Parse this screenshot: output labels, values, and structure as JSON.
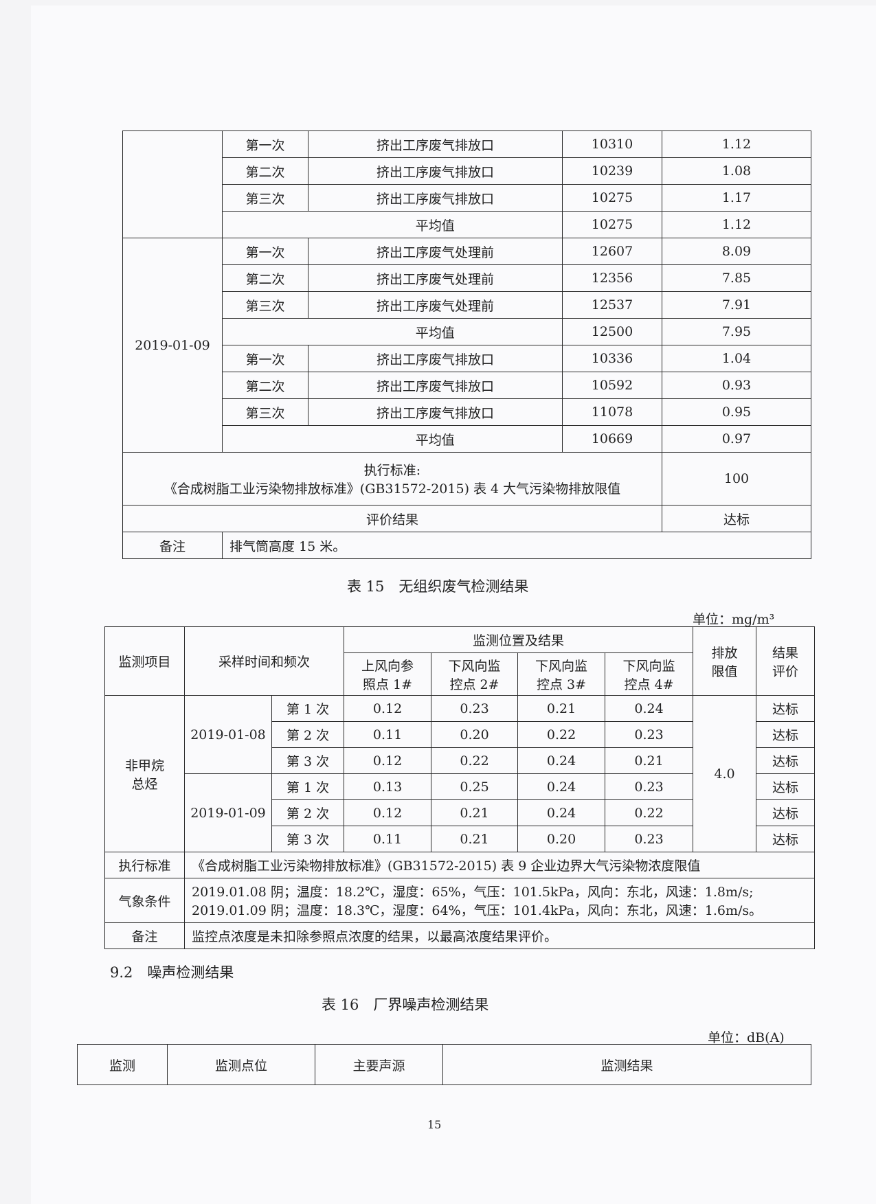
{
  "table14": {
    "blocks": [
      {
        "date": "",
        "rows": [
          {
            "freq": "第一次",
            "location": "挤出工序废气排放口",
            "flow": "10310",
            "conc": "1.12"
          },
          {
            "freq": "第二次",
            "location": "挤出工序废气排放口",
            "flow": "10239",
            "conc": "1.08"
          },
          {
            "freq": "第三次",
            "location": "挤出工序废气排放口",
            "flow": "10275",
            "conc": "1.17"
          }
        ],
        "avg": {
          "label": "平均值",
          "flow": "10275",
          "conc": "1.12"
        }
      },
      {
        "date": "2019-01-09",
        "rows": [
          {
            "freq": "第一次",
            "location": "挤出工序废气处理前",
            "flow": "12607",
            "conc": "8.09"
          },
          {
            "freq": "第二次",
            "location": "挤出工序废气处理前",
            "flow": "12356",
            "conc": "7.85"
          },
          {
            "freq": "第三次",
            "location": "挤出工序废气处理前",
            "flow": "12537",
            "conc": "7.91"
          }
        ],
        "avg": {
          "label": "平均值",
          "flow": "12500",
          "conc": "7.95"
        }
      },
      {
        "date": "",
        "rows": [
          {
            "freq": "第一次",
            "location": "挤出工序废气排放口",
            "flow": "10336",
            "conc": "1.04"
          },
          {
            "freq": "第二次",
            "location": "挤出工序废气排放口",
            "flow": "10592",
            "conc": "0.93"
          },
          {
            "freq": "第三次",
            "location": "挤出工序废气排放口",
            "flow": "11078",
            "conc": "0.95"
          }
        ],
        "avg": {
          "label": "平均值",
          "flow": "10669",
          "conc": "0.97"
        }
      }
    ],
    "standard_label": "执行标准:",
    "standard_text": "《合成树脂工业污染物排放标准》(GB31572-2015) 表 4 大气污染物排放限值",
    "standard_value": "100",
    "eval_label": "评价结果",
    "eval_value": "达标",
    "remark_label": "备注",
    "remark_text": "排气筒高度 15 米。"
  },
  "table15": {
    "caption": "表 15　无组织废气检测结果",
    "unit": "单位：mg/m³",
    "headers": {
      "item": "监测项目",
      "time": "采样时间和频次",
      "group": "监测位置及结果",
      "p1": "上风向参照点 1#",
      "p2": "下风向监控点 2#",
      "p3": "下风向监控点 3#",
      "p4": "下风向监控点 4#",
      "limit": "排放限值",
      "eval": "结果评价"
    },
    "item": "非甲烷总烃",
    "limit": "4.0",
    "dates": [
      "2019-01-08",
      "2019-01-09"
    ],
    "rows": [
      {
        "freq": "第 1 次",
        "values": [
          "0.12",
          "0.23",
          "0.21",
          "0.24"
        ],
        "eval": "达标"
      },
      {
        "freq": "第 2 次",
        "values": [
          "0.11",
          "0.20",
          "0.22",
          "0.23"
        ],
        "eval": "达标"
      },
      {
        "freq": "第 3 次",
        "values": [
          "0.12",
          "0.22",
          "0.24",
          "0.21"
        ],
        "eval": "达标"
      },
      {
        "freq": "第 1 次",
        "values": [
          "0.13",
          "0.25",
          "0.24",
          "0.23"
        ],
        "eval": "达标"
      },
      {
        "freq": "第 2 次",
        "values": [
          "0.12",
          "0.21",
          "0.24",
          "0.22"
        ],
        "eval": "达标"
      },
      {
        "freq": "第 3 次",
        "values": [
          "0.11",
          "0.21",
          "0.20",
          "0.23"
        ],
        "eval": "达标"
      }
    ],
    "standard_label": "执行标准",
    "standard_text": "《合成树脂工业污染物排放标准》(GB31572-2015) 表 9 企业边界大气污染物浓度限值",
    "weather_label": "气象条件",
    "weather_lines": [
      "2019.01.08 阴；温度：18.2℃，湿度：65%，气压：101.5kPa，风向：东北，风速：1.8m/s;",
      "2019.01.09 阴；温度：18.3℃，湿度：64%，气压：101.4kPa，风向：东北，风速：1.6m/s。"
    ],
    "remark_label": "备注",
    "remark_text": "监控点浓度是未扣除参照点浓度的结果，以最高浓度结果评价。"
  },
  "section_heading": "9.2　噪声检测结果",
  "table16": {
    "caption": "表 16　厂界噪声检测结果",
    "unit": "单位：dB(A)",
    "headers": [
      "监测",
      "监测点位",
      "主要声源",
      "监测结果"
    ]
  },
  "page_number": "15"
}
